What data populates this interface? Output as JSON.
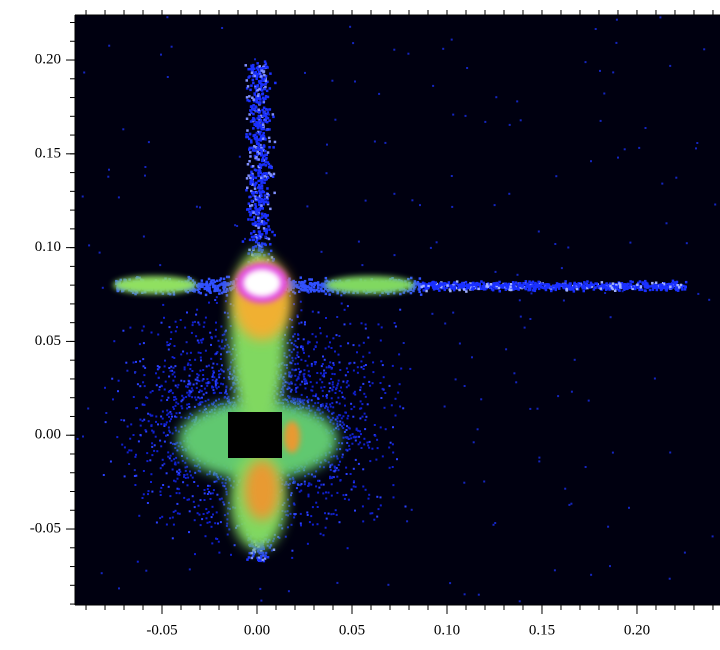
{
  "chart_data": {
    "type": "heatmap",
    "xlim": [
      -0.0958,
      0.2437
    ],
    "ylim": [
      -0.0905,
      0.224
    ],
    "xticks": [
      -0.05,
      {
        "value": 0,
        "label": "0.00"
      },
      0.05,
      {
        "value": 0.1,
        "label": "0.10"
      },
      0.15,
      {
        "value": 0.2,
        "label": "0.20"
      }
    ],
    "yticks": [
      -0.05,
      {
        "value": 0,
        "label": "0.00"
      },
      0.05,
      {
        "value": 0.1,
        "label": "0.10"
      },
      0.15,
      {
        "value": 0.2,
        "label": "0.20"
      }
    ]
  }
}
